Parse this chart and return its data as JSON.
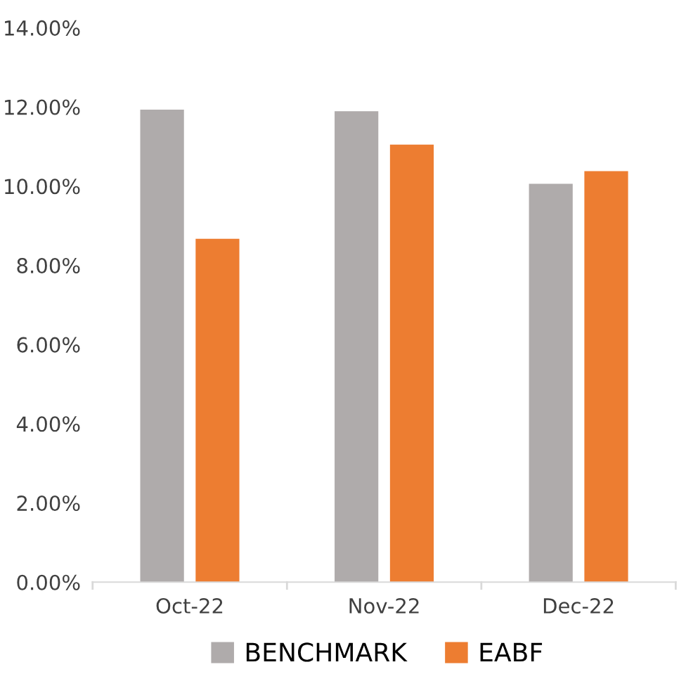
{
  "chart_data": {
    "type": "bar",
    "categories": [
      "Oct-22",
      "Nov-22",
      "Dec-22"
    ],
    "series": [
      {
        "name": "BENCHMARK",
        "color": "#afabab",
        "values": [
          11.93,
          11.89,
          10.06
        ]
      },
      {
        "name": "EABF",
        "color": "#ed7d31",
        "values": [
          8.67,
          11.05,
          10.38
        ]
      }
    ],
    "ylim": [
      0,
      14
    ],
    "yticks": [
      {
        "value": 0,
        "label": "0.00%"
      },
      {
        "value": 2,
        "label": "2.00%"
      },
      {
        "value": 4,
        "label": "4.00%"
      },
      {
        "value": 6,
        "label": "6.00%"
      },
      {
        "value": 8,
        "label": "8.00%"
      },
      {
        "value": 10,
        "label": "10.00%"
      },
      {
        "value": 12,
        "label": "12.00%"
      },
      {
        "value": 14,
        "label": "14.00%"
      }
    ],
    "grid": false,
    "legend": "bottom"
  }
}
